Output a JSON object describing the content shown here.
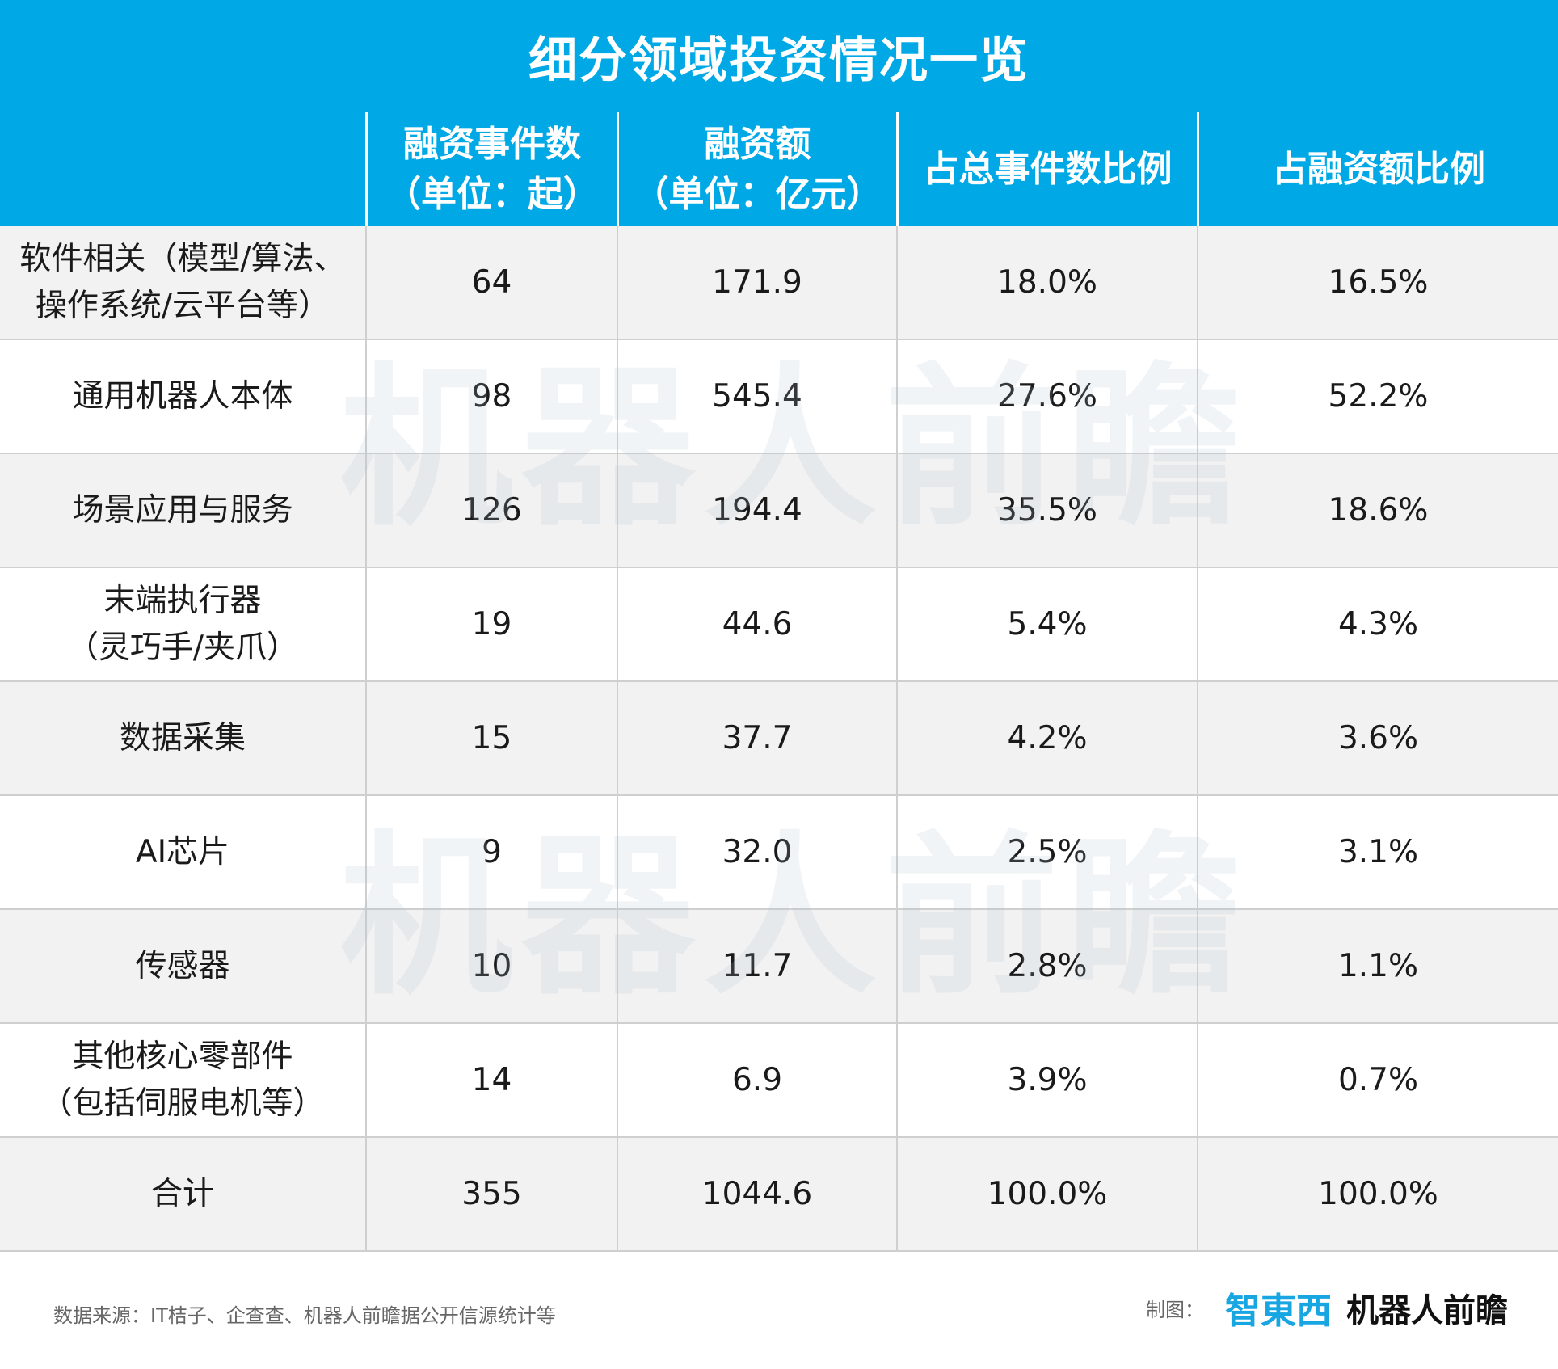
{
  "colors": {
    "accent": "#00a9e6",
    "row_alt": "#f2f2f2",
    "grid": "#cfcfcf",
    "logo_blue": "#17a6e2"
  },
  "chart_data": {
    "type": "table",
    "title": "细分领域投资情况一览",
    "columns": [
      {
        "line1": "",
        "line2": ""
      },
      {
        "line1": "融资事件数",
        "line2": "（单位：起）"
      },
      {
        "line1": "融资额",
        "line2": "（单位：亿元）"
      },
      {
        "line1": "占总事件数比例",
        "line2": ""
      },
      {
        "line1": "占融资额比例",
        "line2": ""
      }
    ],
    "rows": [
      {
        "label1": "软件相关（模型/算法、",
        "label2": "操作系统/云平台等）",
        "events": "64",
        "amount": "171.9",
        "event_share": "18.0%",
        "amount_share": "16.5%"
      },
      {
        "label1": "通用机器人本体",
        "label2": "",
        "events": "98",
        "amount": "545.4",
        "event_share": "27.6%",
        "amount_share": "52.2%"
      },
      {
        "label1": "场景应用与服务",
        "label2": "",
        "events": "126",
        "amount": "194.4",
        "event_share": "35.5%",
        "amount_share": "18.6%"
      },
      {
        "label1": "末端执行器",
        "label2": "（灵巧手/夹爪）",
        "events": "19",
        "amount": "44.6",
        "event_share": "5.4%",
        "amount_share": "4.3%"
      },
      {
        "label1": "数据采集",
        "label2": "",
        "events": "15",
        "amount": "37.7",
        "event_share": "4.2%",
        "amount_share": "3.6%"
      },
      {
        "label1": "AI芯片",
        "label2": "",
        "events": "9",
        "amount": "32.0",
        "event_share": "2.5%",
        "amount_share": "3.1%"
      },
      {
        "label1": "传感器",
        "label2": "",
        "events": "10",
        "amount": "11.7",
        "event_share": "2.8%",
        "amount_share": "1.1%"
      },
      {
        "label1": "其他核心零部件",
        "label2": "（包括伺服电机等）",
        "events": "14",
        "amount": "6.9",
        "event_share": "3.9%",
        "amount_share": "0.7%"
      },
      {
        "label1": "合计",
        "label2": "",
        "events": "355",
        "amount": "1044.6",
        "event_share": "100.0%",
        "amount_share": "100.0%"
      }
    ]
  },
  "watermark": "机器人前瞻",
  "footer": {
    "source": "数据来源：IT桔子、企查查、机器人前瞻据公开信源统计等",
    "credit_label": "制图：",
    "logo_zhidx": "智東西",
    "logo_robot": "机器人前瞻"
  }
}
